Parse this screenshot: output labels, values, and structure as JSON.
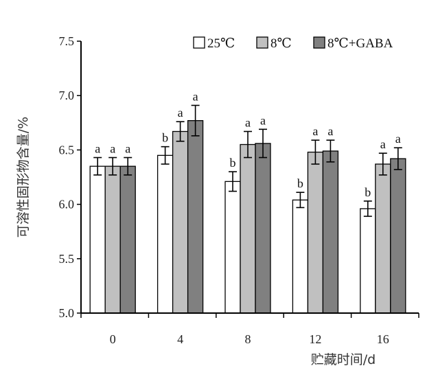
{
  "chart_data": {
    "type": "bar",
    "title": "",
    "xlabel": "贮藏时间/d",
    "ylabel": "可溶性固形物含量/%",
    "ylim": [
      5.0,
      7.5
    ],
    "yticks": [
      "5.0",
      "5.5",
      "6.0",
      "6.5",
      "7.0",
      "7.5"
    ],
    "categories": [
      "0",
      "4",
      "8",
      "12",
      "16"
    ],
    "legend_position": "top-right",
    "grid": false,
    "series": [
      {
        "name": "25℃",
        "color": "#ffffff",
        "values": [
          6.35,
          6.45,
          6.21,
          6.04,
          5.96
        ],
        "errors": [
          0.08,
          0.08,
          0.09,
          0.07,
          0.07
        ],
        "labels": [
          "a",
          "b",
          "b",
          "b",
          "b"
        ]
      },
      {
        "name": "8℃",
        "color": "#c0c0c0",
        "values": [
          6.35,
          6.67,
          6.55,
          6.48,
          6.37
        ],
        "errors": [
          0.08,
          0.09,
          0.12,
          0.11,
          0.1
        ],
        "labels": [
          "a",
          "a",
          "a",
          "a",
          "a"
        ]
      },
      {
        "name": "8℃+GABA",
        "color": "#808080",
        "values": [
          6.35,
          6.77,
          6.56,
          6.49,
          6.42
        ],
        "errors": [
          0.08,
          0.14,
          0.13,
          0.1,
          0.1
        ],
        "labels": [
          "a",
          "a",
          "a",
          "a",
          "a"
        ]
      }
    ]
  }
}
